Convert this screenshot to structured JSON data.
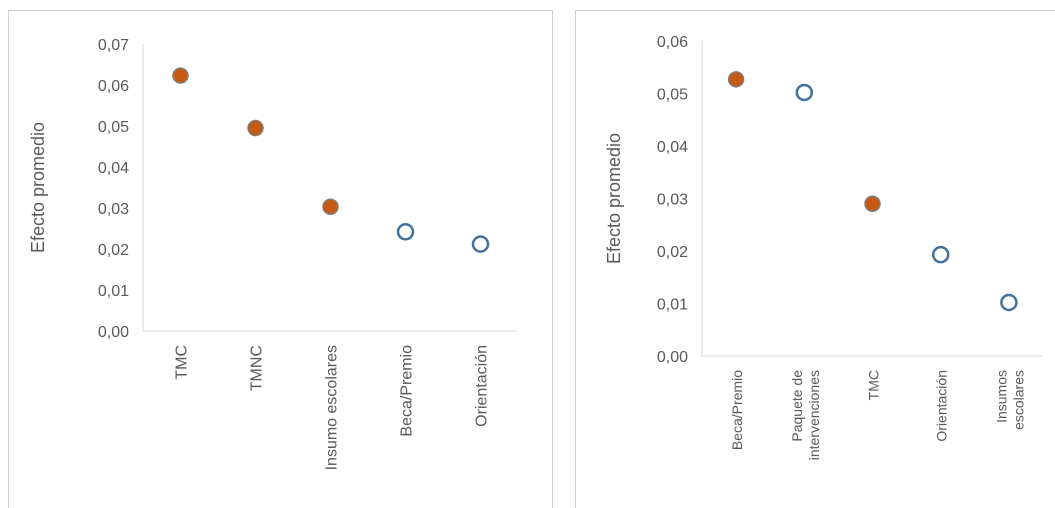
{
  "colors": {
    "significant": "#c55a11",
    "significant_outline": "#7f7f7f",
    "not_significant": "#41719c",
    "axis": "#d9d9d9",
    "text": "#595959"
  },
  "chart_data": [
    {
      "type": "scatter",
      "ylabel": "Efecto promedio",
      "ylim": [
        0,
        0.07
      ],
      "yticks": [
        "0,00",
        "0,01",
        "0,02",
        "0,03",
        "0,04",
        "0,05",
        "0,06",
        "0,07"
      ],
      "categories": [
        "TMC",
        "TMNC",
        "Insumo escolares",
        "Beca/Premio",
        "Orientación"
      ],
      "values": [
        0.0623,
        0.0495,
        0.0303,
        0.0242,
        0.0212
      ],
      "filled": [
        true,
        true,
        true,
        false,
        false
      ],
      "grid": false,
      "legend": "none"
    },
    {
      "type": "scatter",
      "ylabel": "Efecto promedio",
      "ylim": [
        0,
        0.06
      ],
      "yticks": [
        "0,00",
        "0,01",
        "0,02",
        "0,03",
        "0,04",
        "0,05",
        "0,06"
      ],
      "categories": [
        [
          "Beca/Premio"
        ],
        [
          "Paquete de",
          "intervenciones"
        ],
        [
          "TMC"
        ],
        [
          "Orientación"
        ],
        [
          "Insumos",
          "escolares"
        ]
      ],
      "values": [
        0.0527,
        0.0502,
        0.029,
        0.0193,
        0.0102
      ],
      "filled": [
        true,
        false,
        true,
        false,
        false
      ],
      "grid": false,
      "legend": "none"
    }
  ]
}
